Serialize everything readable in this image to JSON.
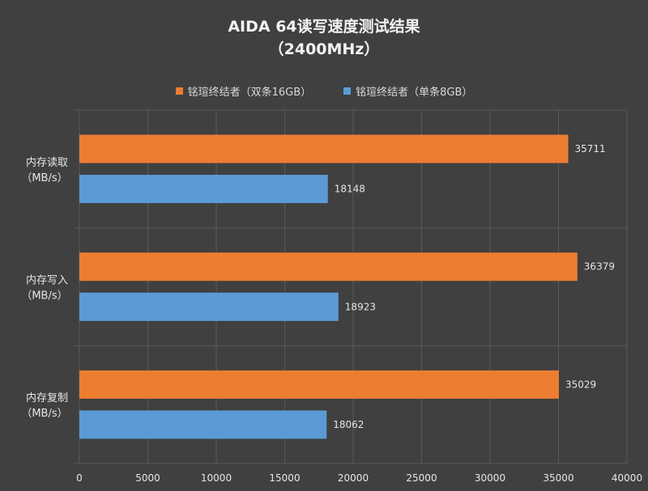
{
  "chart_data": {
    "type": "bar",
    "orientation": "horizontal",
    "title": "AIDA 64读写速度测试结果",
    "subtitle": "（2400MHz）",
    "categories": [
      {
        "line1": "内存读取",
        "line2": "（MB/s）"
      },
      {
        "line1": "内存写入",
        "line2": "（MB/s）"
      },
      {
        "line1": "内存复制",
        "line2": "（MB/s）"
      }
    ],
    "series": [
      {
        "name": "铭瑄终结者（双条16GB）",
        "color": "#ED7D31",
        "values": [
          35711,
          36379,
          35029
        ]
      },
      {
        "name": "铭瑄终结者（单条8GB）",
        "color": "#5B9BD5",
        "values": [
          18148,
          18923,
          18062
        ]
      }
    ],
    "xlim": [
      0,
      40000
    ],
    "xticks": [
      "0",
      "5000",
      "10000",
      "15000",
      "20000",
      "25000",
      "30000",
      "35000",
      "40000"
    ],
    "grid": true,
    "legend_position": "top"
  }
}
